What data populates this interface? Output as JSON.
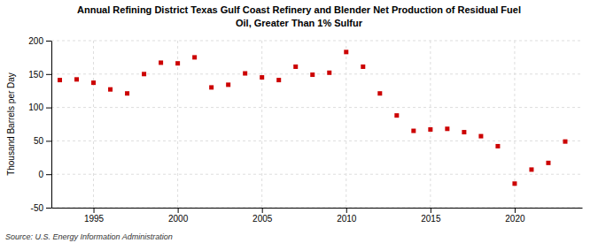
{
  "chart_data": {
    "type": "scatter",
    "title": "Annual Refining District Texas Gulf Coast Refinery and Blender Net Production of Residual Fuel\nOil, Greater Than 1% Sulfur",
    "ylabel": "Thousand Barrels per Day",
    "source": "Source: U.S. Energy Information Administration",
    "x": [
      1993,
      1994,
      1995,
      1996,
      1997,
      1998,
      1999,
      2000,
      2001,
      2002,
      2003,
      2004,
      2005,
      2006,
      2007,
      2008,
      2009,
      2010,
      2011,
      2012,
      2013,
      2014,
      2015,
      2016,
      2017,
      2018,
      2019,
      2020,
      2021,
      2022,
      2023
    ],
    "values": [
      141,
      142,
      137,
      127,
      121,
      150,
      167,
      166,
      175,
      130,
      134,
      151,
      145,
      141,
      161,
      149,
      152,
      183,
      161,
      121,
      88,
      65,
      67,
      68,
      63,
      57,
      42,
      -14,
      7,
      17,
      49
    ],
    "color": "#cc0000",
    "marker": "square",
    "xlim": [
      1992.5,
      2024
    ],
    "xticks": [
      1995,
      2000,
      2005,
      2010,
      2015,
      2020
    ],
    "ylim": [
      -50,
      200
    ],
    "yticks": [
      -50,
      0,
      50,
      100,
      150,
      200
    ],
    "grid": true
  }
}
